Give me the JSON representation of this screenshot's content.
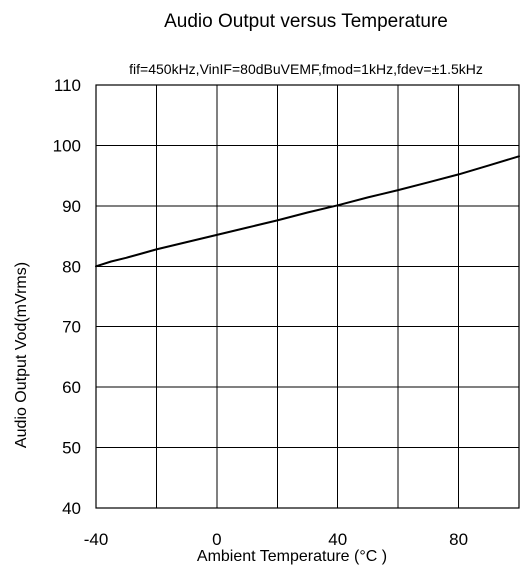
{
  "chart_data": {
    "type": "line",
    "title": "Audio Output versus Temperature",
    "subtitle": "fif=450kHz,VinIF=80dBuVEMF,fmod=1kHz,fdev=±1.5kHz",
    "xlabel": "Ambient Temperature (°C )",
    "ylabel": "Audio Output Vod(mVrms)",
    "xlim": [
      -40,
      100
    ],
    "ylim": [
      40,
      110
    ],
    "x_ticks": [
      -40,
      0,
      40,
      80
    ],
    "x_tick_labels": [
      "-40",
      "0",
      "40",
      "80"
    ],
    "y_ticks": [
      40,
      50,
      60,
      70,
      80,
      90,
      100,
      110
    ],
    "y_tick_labels": [
      "40",
      "50",
      "60",
      "70",
      "80",
      "90",
      "100",
      "110"
    ],
    "x_gridlines": [
      -40,
      -20,
      0,
      20,
      40,
      60,
      80,
      100
    ],
    "y_gridlines": [
      40,
      50,
      60,
      70,
      80,
      90,
      100,
      110
    ],
    "grid": true,
    "legend": "none",
    "line_color": "#000000",
    "series": [
      {
        "x": [
          -40,
          -35,
          -30,
          -25,
          -20,
          -10,
          0,
          10,
          20,
          30,
          40,
          50,
          60,
          70,
          80,
          90,
          100
        ],
        "y": [
          80.0,
          80.8,
          81.4,
          82.1,
          82.8,
          84.0,
          85.2,
          86.4,
          87.6,
          88.9,
          90.1,
          91.4,
          92.6,
          93.9,
          95.2,
          96.7,
          98.2
        ]
      }
    ]
  }
}
